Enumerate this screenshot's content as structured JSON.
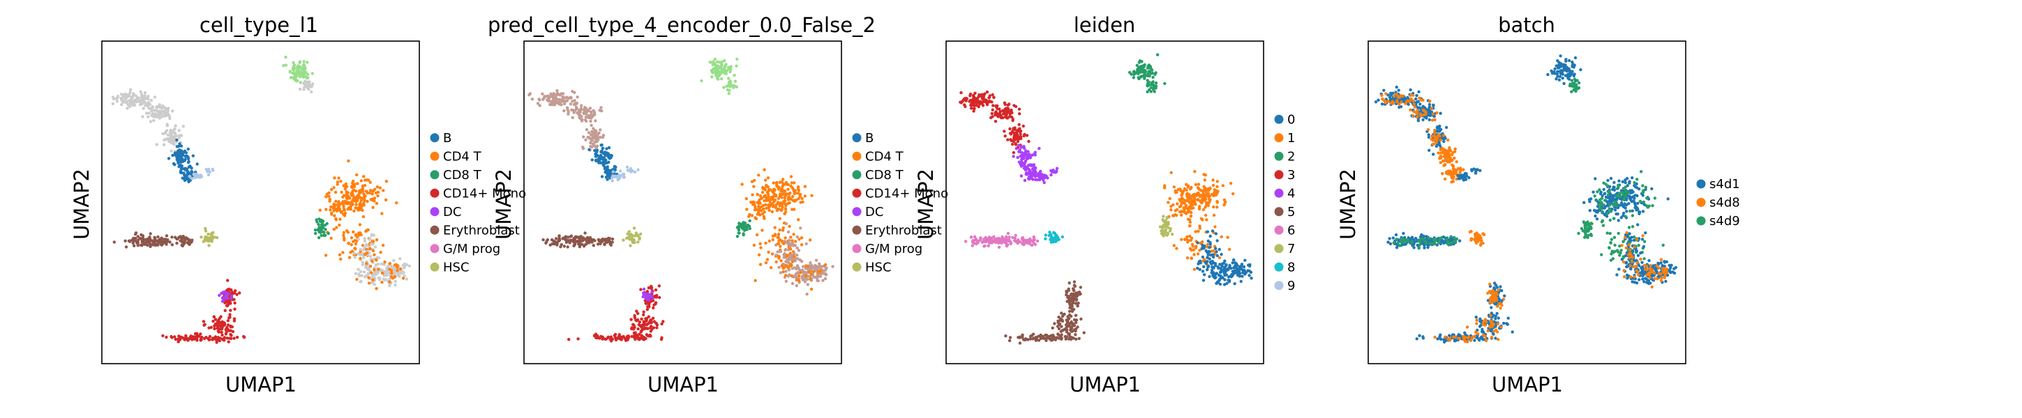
{
  "chart_data": [
    {
      "type": "scatter",
      "title": "cell_type_l1",
      "xlabel": "UMAP1",
      "ylabel": "UMAP2",
      "grid": false,
      "legend_position": "right",
      "categories": [
        "B",
        "CD4 T",
        "CD8 T",
        "CD14+ Mono",
        "DC",
        "Erythroblast",
        "G/M prog",
        "HSC"
      ],
      "colors": [
        "#1f77b4",
        "#ff7f0e",
        "#279e68",
        "#d62728",
        "#aa40fc",
        "#8c564b",
        "#e377c2",
        "#b5bd61"
      ],
      "na_color": "#cccccc"
    },
    {
      "type": "scatter",
      "title": "pred_cell_type_4_encoder_0.0_False_2",
      "xlabel": "UMAP1",
      "ylabel": "UMAP2",
      "grid": false,
      "legend_position": "right",
      "categories": [
        "B",
        "CD4 T",
        "CD8 T",
        "CD14+ Mono",
        "DC",
        "Erythroblast",
        "G/M prog",
        "HSC"
      ],
      "colors": [
        "#1f77b4",
        "#ff7f0e",
        "#279e68",
        "#d62728",
        "#aa40fc",
        "#8c564b",
        "#e377c2",
        "#b5bd61"
      ],
      "extra_color": "#c49c94"
    },
    {
      "type": "scatter",
      "title": "leiden",
      "xlabel": "UMAP1",
      "ylabel": "UMAP2",
      "grid": false,
      "legend_position": "right",
      "categories": [
        "0",
        "1",
        "2",
        "3",
        "4",
        "5",
        "6",
        "7",
        "8",
        "9"
      ],
      "colors": [
        "#1f77b4",
        "#ff7f0e",
        "#279e68",
        "#d62728",
        "#aa40fc",
        "#8c564b",
        "#e377c2",
        "#b5bd61",
        "#17becf",
        "#aec7e8"
      ]
    },
    {
      "type": "scatter",
      "title": "batch",
      "xlabel": "UMAP1",
      "ylabel": "UMAP2",
      "grid": false,
      "legend_position": "right",
      "categories": [
        "s4d1",
        "s4d8",
        "s4d9"
      ],
      "colors": [
        "#1f77b4",
        "#ff7f0e",
        "#279e68"
      ]
    }
  ]
}
